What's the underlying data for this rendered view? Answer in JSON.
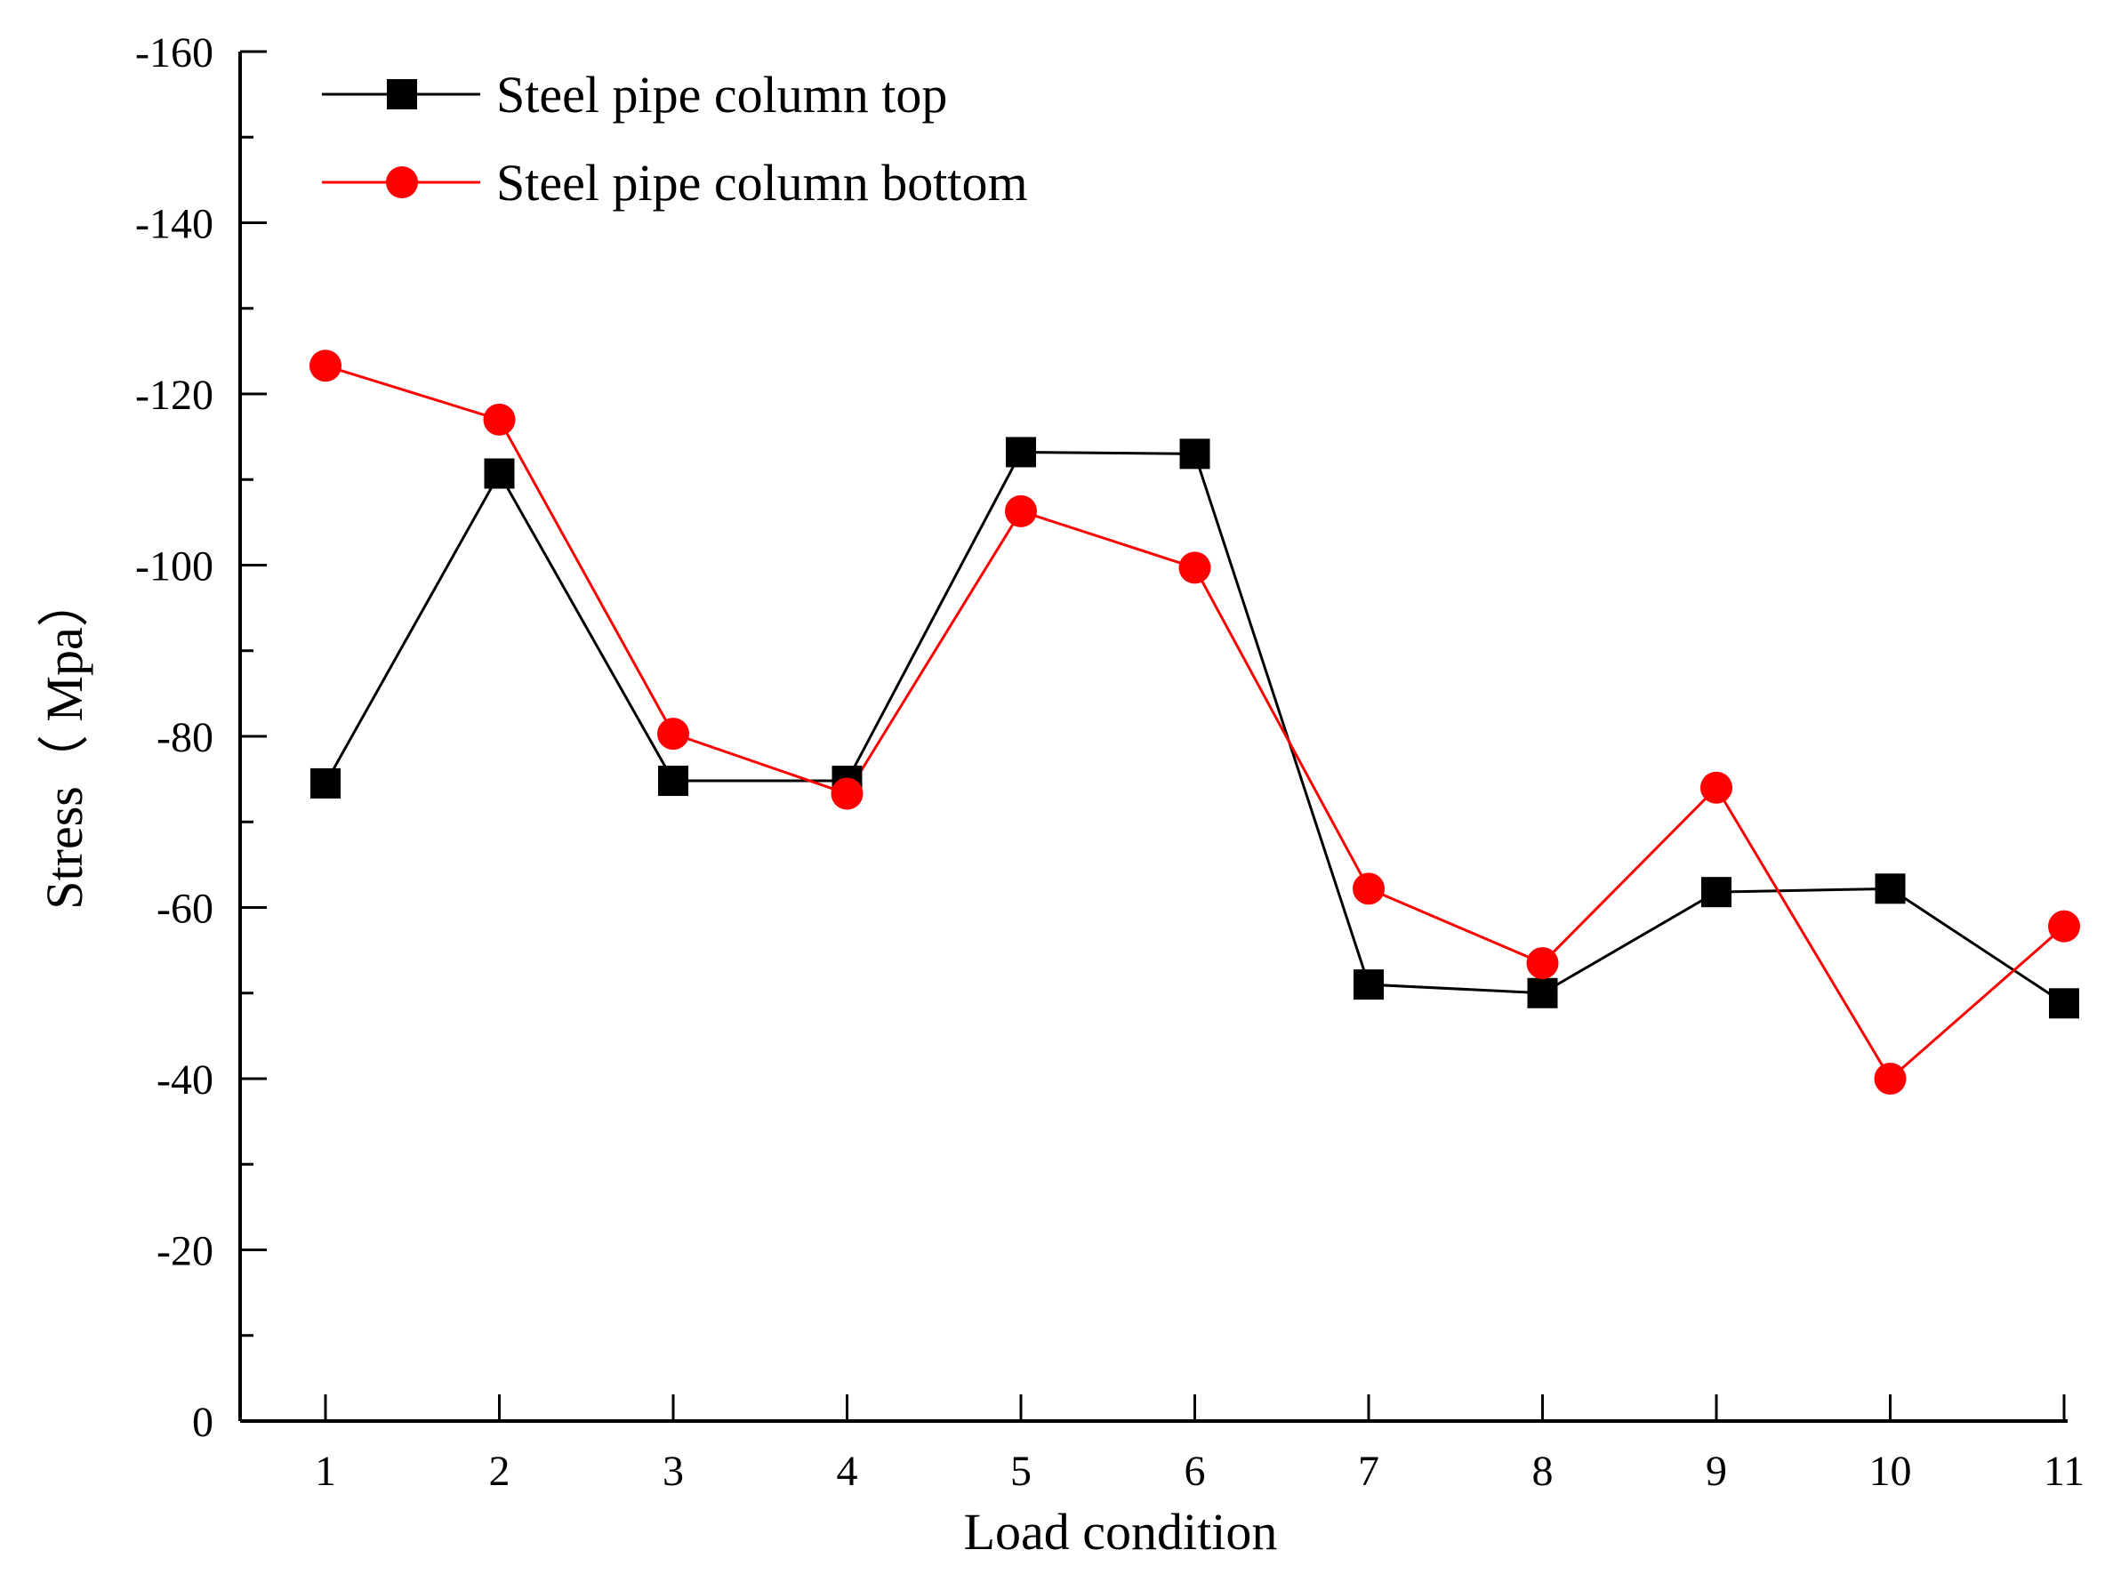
{
  "chart_data": {
    "type": "line",
    "title": "",
    "xlabel": "Load condition",
    "ylabel": "Stress（ Mpa）",
    "x": [
      1,
      2,
      3,
      4,
      5,
      6,
      7,
      8,
      9,
      10,
      11
    ],
    "x_tick_labels": [
      "1",
      "2",
      "3",
      "4",
      "5",
      "6",
      "7",
      "8",
      "9",
      "10",
      "11"
    ],
    "xlim": [
      0.5,
      11
    ],
    "ylim": [
      0,
      -160
    ],
    "y_axis_inverted": true,
    "y_ticks": [
      0,
      -20,
      -40,
      -60,
      -80,
      -100,
      -120,
      -140,
      -160
    ],
    "y_tick_labels": [
      "0",
      "-20",
      "-40",
      "-60",
      "-80",
      "-100",
      "-120",
      "-140",
      "-160"
    ],
    "grid": false,
    "legend_position": "top-left",
    "series": [
      {
        "name": "Steel pipe column top",
        "color": "#000000",
        "marker": "square",
        "values": [
          -74.5,
          -110.7,
          -74.8,
          -74.8,
          -113.2,
          -113.0,
          -51.0,
          -50.0,
          -61.8,
          -62.2,
          -48.8
        ]
      },
      {
        "name": "Steel pipe column bottom",
        "color": "#ff0000",
        "marker": "circle",
        "values": [
          -123.3,
          -117.0,
          -80.3,
          -73.3,
          -106.3,
          -99.7,
          -62.2,
          -53.5,
          -74.0,
          -40.0,
          -57.8
        ]
      }
    ]
  }
}
